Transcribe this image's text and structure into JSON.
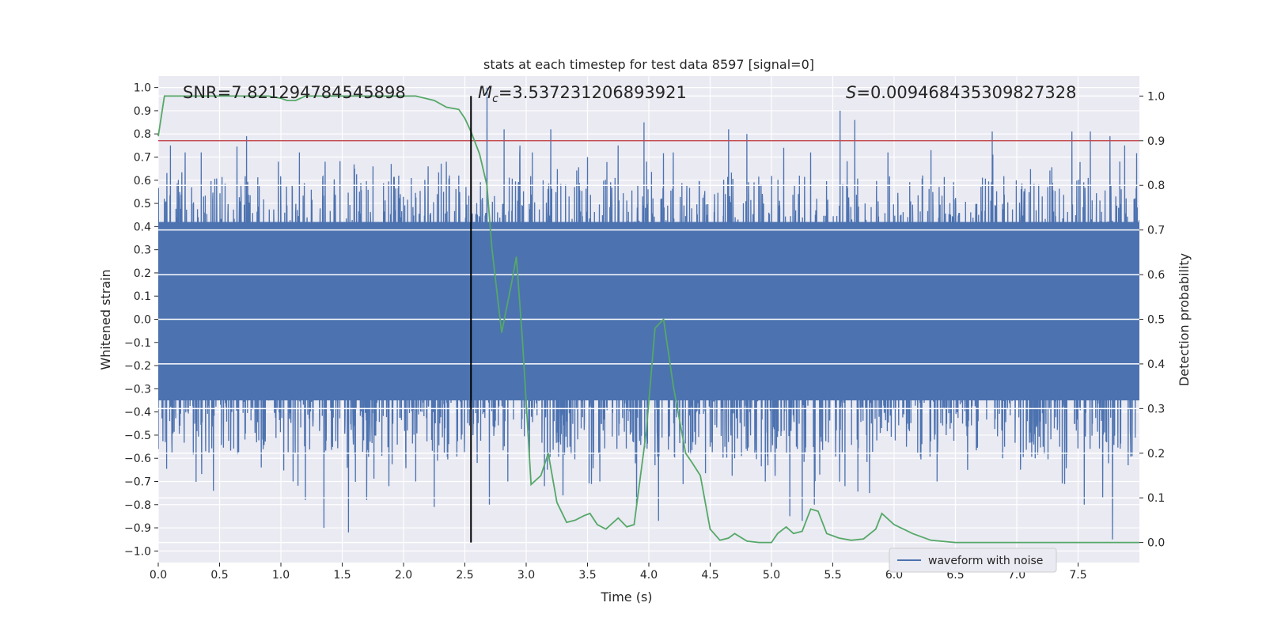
{
  "chart_data": {
    "type": "line",
    "title": "stats at each timestep for test data 8597 [signal=0]",
    "xlabel": "Time (s)",
    "ylabel_left": "Whitened strain",
    "ylabel_right": "Detection probability",
    "xlim": [
      0,
      8.0
    ],
    "ylim_left": [
      -1.05,
      1.05
    ],
    "ylim_right": [
      -0.045,
      1.045
    ],
    "x_ticks": [
      "0.0",
      "0.5",
      "1.0",
      "1.5",
      "2.0",
      "2.5",
      "3.0",
      "3.5",
      "4.0",
      "4.5",
      "5.0",
      "5.5",
      "6.0",
      "6.5",
      "7.0",
      "7.5"
    ],
    "y_left_ticks": [
      "1.0",
      "0.9",
      "0.8",
      "0.7",
      "0.6",
      "0.5",
      "0.4",
      "0.3",
      "0.2",
      "0.1",
      "0.0",
      "-0.1",
      "-0.2",
      "-0.3",
      "-0.4",
      "-0.5",
      "-0.6",
      "-0.7",
      "-0.8",
      "-0.9",
      "-1.0"
    ],
    "y_right_ticks": [
      "1.0",
      "0.9",
      "0.8",
      "0.7",
      "0.6",
      "0.5",
      "0.4",
      "0.3",
      "0.2",
      "0.1",
      "0.0"
    ],
    "grid": true,
    "annotations": {
      "snr": "SNR=7.821294784545898",
      "mc_symbol": "M",
      "mc_sub": "c",
      "mc_value": "=3.537231206893921",
      "s_symbol": "S",
      "s_value": "=0.009468435309827328"
    },
    "series": [
      {
        "name": "waveform with noise",
        "axis": "left",
        "color": "#4c72b0",
        "description": "dense whitened strain noise, sampled at 2048 Hz",
        "band": [
          -0.35,
          0.42
        ],
        "peaks_high": [
          [
            0.05,
            0.52
          ],
          [
            0.1,
            0.75
          ],
          [
            0.22,
            0.72
          ],
          [
            0.35,
            0.72
          ],
          [
            0.45,
            0.65
          ],
          [
            0.72,
            0.79
          ],
          [
            0.98,
            0.68
          ],
          [
            1.15,
            0.72
          ],
          [
            1.36,
            0.68
          ],
          [
            1.6,
            0.65
          ],
          [
            1.75,
            0.66
          ],
          [
            1.9,
            0.67
          ],
          [
            2.2,
            0.66
          ],
          [
            2.35,
            0.68
          ],
          [
            2.45,
            0.62
          ],
          [
            2.6,
            0.8
          ],
          [
            2.68,
            1.0
          ],
          [
            2.82,
            0.82
          ],
          [
            2.95,
            0.75
          ],
          [
            3.05,
            0.72
          ],
          [
            3.2,
            0.82
          ],
          [
            3.5,
            0.7
          ],
          [
            3.75,
            0.75
          ],
          [
            3.96,
            0.85
          ],
          [
            4.2,
            0.72
          ],
          [
            4.5,
            0.72
          ],
          [
            4.65,
            0.82
          ],
          [
            4.8,
            0.8
          ],
          [
            5.1,
            0.74
          ],
          [
            5.32,
            0.72
          ],
          [
            5.56,
            0.9
          ],
          [
            5.68,
            0.86
          ],
          [
            5.95,
            0.72
          ],
          [
            6.3,
            0.73
          ],
          [
            6.6,
            0.8
          ],
          [
            6.8,
            0.81
          ],
          [
            7.15,
            0.81
          ],
          [
            7.45,
            0.81
          ],
          [
            7.6,
            0.81
          ],
          [
            7.76,
            0.79
          ],
          [
            7.88,
            0.75
          ]
        ],
        "peaks_low": [
          [
            0.0,
            -0.56
          ],
          [
            0.45,
            -0.74
          ],
          [
            1.1,
            -0.7
          ],
          [
            1.2,
            -0.78
          ],
          [
            1.35,
            -0.9
          ],
          [
            1.55,
            -0.92
          ],
          [
            1.7,
            -0.78
          ],
          [
            1.88,
            -0.72
          ],
          [
            2.1,
            -0.7
          ],
          [
            2.25,
            -0.81
          ],
          [
            2.6,
            -0.62
          ],
          [
            2.7,
            -0.8
          ],
          [
            2.85,
            -0.7
          ],
          [
            3.15,
            -0.72
          ],
          [
            3.3,
            -0.76
          ],
          [
            3.6,
            -0.7
          ],
          [
            3.9,
            -0.8
          ],
          [
            4.08,
            -0.87
          ],
          [
            4.5,
            -0.55
          ],
          [
            4.7,
            -0.6
          ],
          [
            4.95,
            -0.7
          ],
          [
            5.15,
            -0.85
          ],
          [
            5.25,
            -0.87
          ],
          [
            5.35,
            -0.8
          ],
          [
            5.6,
            -0.72
          ],
          [
            5.8,
            -0.75
          ],
          [
            6.1,
            -0.55
          ],
          [
            6.35,
            -0.7
          ],
          [
            6.6,
            -0.65
          ],
          [
            6.9,
            -0.55
          ],
          [
            7.15,
            -0.6
          ],
          [
            7.35,
            -0.55
          ],
          [
            7.55,
            -0.8
          ],
          [
            7.7,
            -0.77
          ],
          [
            7.78,
            -0.95
          ]
        ]
      },
      {
        "name": "detection probability",
        "axis": "right",
        "color": "#55a868",
        "x": [
          0.0,
          0.05,
          0.1,
          0.3,
          0.6,
          0.9,
          1.0,
          1.05,
          1.12,
          1.2,
          1.4,
          1.8,
          2.1,
          2.25,
          2.35,
          2.45,
          2.5,
          2.55,
          2.62,
          2.68,
          2.72,
          2.8,
          2.88,
          2.92,
          2.97,
          3.04,
          3.12,
          3.18,
          3.25,
          3.33,
          3.4,
          3.47,
          3.52,
          3.58,
          3.65,
          3.75,
          3.82,
          3.88,
          3.98,
          4.05,
          4.12,
          4.2,
          4.3,
          4.35,
          4.42,
          4.5,
          4.58,
          4.65,
          4.7,
          4.8,
          4.9,
          5.0,
          5.05,
          5.12,
          5.18,
          5.25,
          5.32,
          5.38,
          5.45,
          5.55,
          5.65,
          5.75,
          5.85,
          5.9,
          6.0,
          6.15,
          6.3,
          6.5,
          6.8,
          6.95,
          7.05,
          7.2,
          7.4,
          7.6,
          7.75,
          7.85,
          8.0
        ],
        "values": [
          0.91,
          1.0,
          1.0,
          1.0,
          1.0,
          1.0,
          0.995,
          0.99,
          0.99,
          1.0,
          1.0,
          1.0,
          1.0,
          0.99,
          0.975,
          0.97,
          0.95,
          0.92,
          0.87,
          0.8,
          0.66,
          0.47,
          0.58,
          0.64,
          0.45,
          0.13,
          0.15,
          0.2,
          0.09,
          0.045,
          0.05,
          0.06,
          0.065,
          0.04,
          0.03,
          0.055,
          0.035,
          0.04,
          0.25,
          0.48,
          0.5,
          0.35,
          0.2,
          0.18,
          0.15,
          0.03,
          0.005,
          0.01,
          0.02,
          0.003,
          0.0,
          0.0,
          0.02,
          0.035,
          0.02,
          0.025,
          0.075,
          0.07,
          0.02,
          0.01,
          0.005,
          0.008,
          0.03,
          0.065,
          0.04,
          0.02,
          0.005,
          0.0,
          0.0,
          0.0,
          0.0,
          0.0,
          0.0,
          0.0,
          0.0,
          0.0,
          0.0
        ]
      },
      {
        "name": "detection threshold",
        "axis": "right",
        "color": "#c44e52",
        "values": [
          0.9
        ]
      },
      {
        "name": "marker",
        "axis": "right",
        "color": "#000000",
        "x": [
          2.55
        ],
        "range": [
          0.0,
          1.0
        ]
      }
    ],
    "legend": {
      "position": "lower-right",
      "entries": [
        "waveform with noise"
      ]
    }
  }
}
